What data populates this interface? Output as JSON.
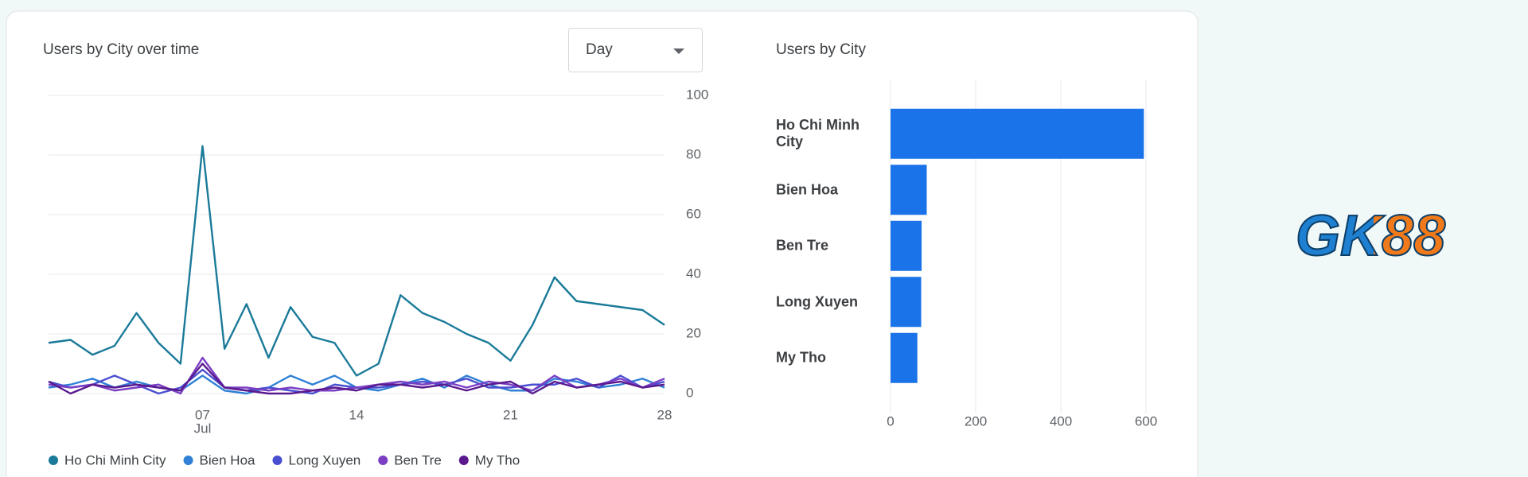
{
  "chart_data": [
    {
      "type": "line",
      "title": "Users by City over time",
      "categories": [
        null,
        null,
        null,
        null,
        null,
        null,
        null,
        "07",
        null,
        null,
        null,
        null,
        null,
        null,
        "14",
        null,
        null,
        null,
        null,
        null,
        null,
        "21",
        null,
        null,
        null,
        null,
        null,
        null,
        "28"
      ],
      "x_month_label": "Jul",
      "ylim": [
        0,
        100
      ],
      "yticks": [
        0,
        20,
        40,
        60,
        80,
        100
      ],
      "grid": true,
      "series": [
        {
          "name": "Ho Chi Minh City",
          "color": "#1a7a99",
          "values": [
            17,
            18,
            13,
            16,
            27,
            17,
            10,
            83,
            15,
            30,
            12,
            29,
            19,
            17,
            6,
            10,
            33,
            27,
            24,
            20,
            17,
            11,
            23,
            39,
            31,
            30,
            29,
            28,
            23
          ]
        },
        {
          "name": "Bien Hoa",
          "color": "#2f80d6",
          "values": [
            2,
            3,
            5,
            2,
            4,
            2,
            1,
            6,
            1,
            0,
            2,
            6,
            3,
            6,
            2,
            1,
            3,
            5,
            2,
            6,
            3,
            1,
            1,
            5,
            4,
            2,
            3,
            5,
            2
          ]
        },
        {
          "name": "Long Xuyen",
          "color": "#4a4fd1",
          "values": [
            4,
            2,
            3,
            6,
            3,
            0,
            2,
            8,
            2,
            1,
            2,
            1,
            0,
            3,
            2,
            2,
            3,
            4,
            3,
            5,
            2,
            2,
            3,
            3,
            5,
            2,
            6,
            2,
            4
          ]
        },
        {
          "name": "Ben Tre",
          "color": "#7b3fc4",
          "values": [
            3,
            2,
            3,
            1,
            2,
            3,
            0,
            12,
            2,
            2,
            1,
            2,
            1,
            1,
            2,
            3,
            4,
            3,
            4,
            2,
            4,
            3,
            1,
            6,
            2,
            3,
            5,
            2,
            5
          ]
        },
        {
          "name": "My Tho",
          "color": "#5a1a8e",
          "values": [
            4,
            0,
            3,
            2,
            3,
            2,
            1,
            10,
            2,
            1,
            0,
            0,
            1,
            2,
            1,
            3,
            3,
            2,
            3,
            1,
            3,
            4,
            0,
            4,
            2,
            3,
            4,
            2,
            3
          ]
        }
      ]
    },
    {
      "type": "hbar",
      "title": "Users by City",
      "categories": [
        "Ho Chi Minh City",
        "Bien Hoa",
        "Ben Tre",
        "Long Xuyen",
        "My Tho"
      ],
      "values": [
        595,
        85,
        73,
        72,
        63
      ],
      "color": "#1a73e8",
      "xlim": [
        0,
        600
      ],
      "xticks": [
        0,
        200,
        400,
        600
      ],
      "grid": true
    }
  ],
  "dropdown": {
    "label": "Day"
  },
  "logo": {
    "text": "GK88"
  }
}
